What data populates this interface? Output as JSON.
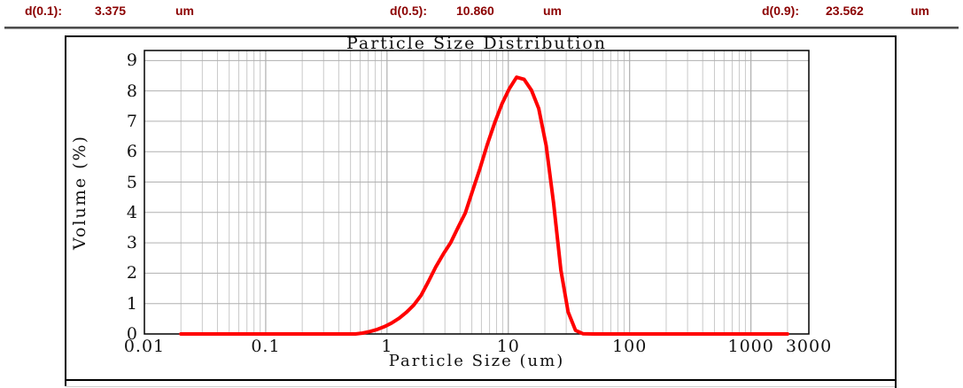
{
  "header": {
    "items": [
      {
        "label": "d(0.1):",
        "value": "3.375",
        "unit": "um"
      },
      {
        "label": "d(0.5):",
        "value": "10.860",
        "unit": "um"
      },
      {
        "label": "d(0.9):",
        "value": "23.562",
        "unit": "um"
      }
    ]
  },
  "chart_data": {
    "type": "line",
    "title": "Particle Size Distribution",
    "xlabel": "Particle Size (um)",
    "ylabel": "Volume (%)",
    "x_scale": "log",
    "xlim": [
      0.01,
      3000
    ],
    "ylim": [
      0,
      9.33
    ],
    "x_tick_values": [
      0.01,
      0.1,
      1,
      10,
      100,
      1000,
      3000
    ],
    "x_tick_labels": [
      "0.01",
      "0.1",
      "1",
      "10",
      "100",
      "1000",
      "3000"
    ],
    "y_tick_values": [
      0,
      1,
      2,
      3,
      4,
      5,
      6,
      7,
      8,
      9
    ],
    "grid": "log minor verticals + integer horizontals",
    "legend": "none",
    "series": [
      {
        "name": "Volume (%)",
        "color": "#ff0000",
        "points": [
          [
            0.02,
            0
          ],
          [
            0.06,
            0
          ],
          [
            0.15,
            0
          ],
          [
            0.3,
            0
          ],
          [
            0.45,
            0
          ],
          [
            0.55,
            0
          ],
          [
            0.63,
            0.03
          ],
          [
            0.72,
            0.08
          ],
          [
            0.83,
            0.15
          ],
          [
            0.95,
            0.24
          ],
          [
            1.09,
            0.36
          ],
          [
            1.26,
            0.52
          ],
          [
            1.45,
            0.72
          ],
          [
            1.66,
            0.95
          ],
          [
            1.91,
            1.27
          ],
          [
            2.19,
            1.72
          ],
          [
            2.52,
            2.2
          ],
          [
            2.9,
            2.62
          ],
          [
            3.34,
            3.0
          ],
          [
            3.84,
            3.5
          ],
          [
            4.42,
            3.98
          ],
          [
            5.08,
            4.72
          ],
          [
            5.84,
            5.45
          ],
          [
            6.72,
            6.25
          ],
          [
            7.72,
            6.95
          ],
          [
            8.88,
            7.58
          ],
          [
            10.2,
            8.08
          ],
          [
            11.7,
            8.45
          ],
          [
            13.5,
            8.38
          ],
          [
            15.5,
            8.02
          ],
          [
            17.8,
            7.42
          ],
          [
            20.5,
            6.2
          ],
          [
            23.6,
            4.3
          ],
          [
            27.1,
            2.1
          ],
          [
            31.1,
            0.72
          ],
          [
            35.8,
            0.12
          ],
          [
            41.1,
            0.01
          ],
          [
            50,
            0
          ],
          [
            200,
            0
          ],
          [
            2000,
            0
          ]
        ]
      }
    ]
  },
  "colors": {
    "header_text": "#8b0000",
    "separator": "#4d4d4d",
    "frame": "#000000",
    "grid_minor": "#c9c9c9",
    "grid_major": "#9e9e9e",
    "grid_horizontal": "#b0b0b0",
    "curve": "#ff0000"
  }
}
